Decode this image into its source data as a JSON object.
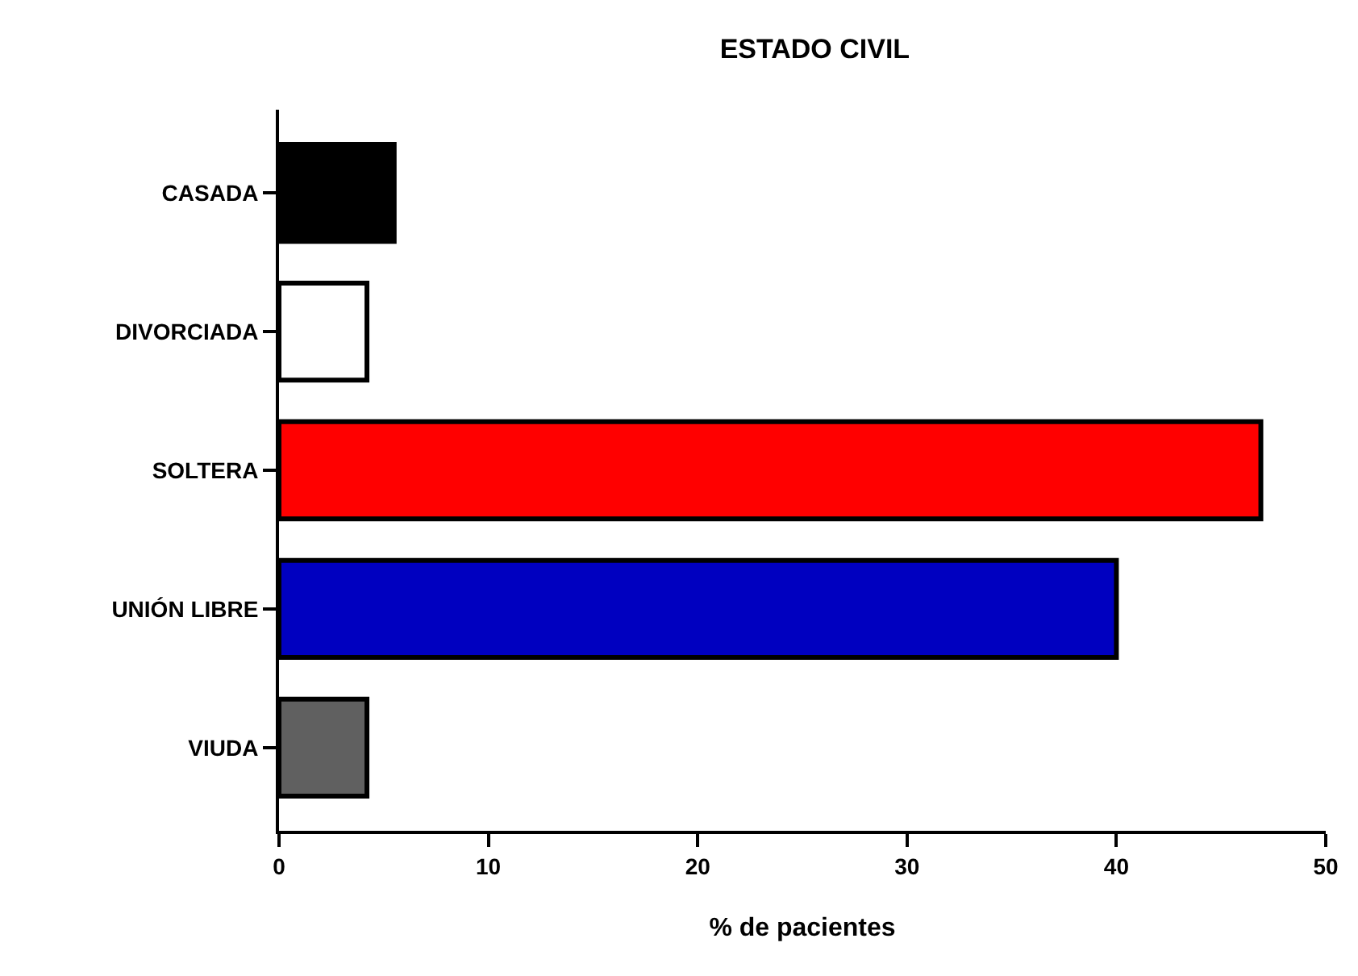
{
  "chart_data": {
    "type": "bar",
    "orientation": "horizontal",
    "title": "ESTADO CIVIL",
    "xlabel": "% de pacientes",
    "categories": [
      "CASADA",
      "DIVORCIADA",
      "SOLTERA",
      "UNIÓN LIBRE",
      "VIUDA"
    ],
    "values": [
      5.5,
      4.2,
      46.9,
      40.0,
      4.2
    ],
    "colors": [
      "#000000",
      "#ffffff",
      "#ff0000",
      "#0000c0",
      "#606060"
    ],
    "xlim": [
      0,
      50
    ],
    "xticks": [
      0,
      10,
      20,
      30,
      40,
      50
    ]
  }
}
